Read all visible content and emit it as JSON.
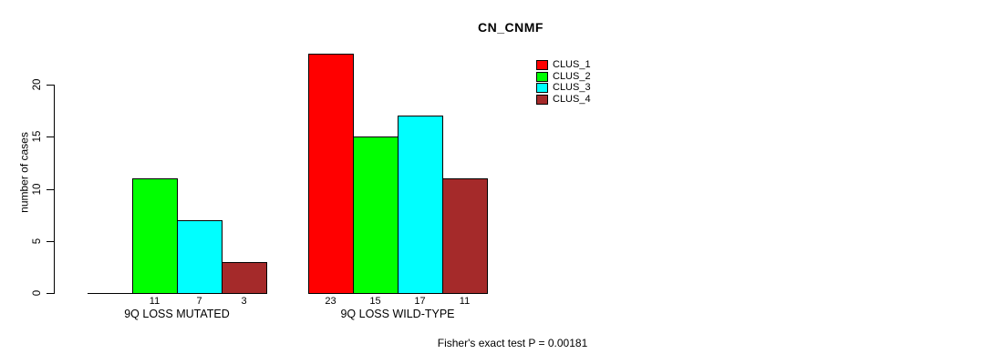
{
  "title": "CN_CNMF",
  "ylabel": "number of cases",
  "footer": "Fisher's exact test P = 0.00181",
  "colors": {
    "background": "#FFFFFF",
    "axis": "#000000",
    "text": "#000000",
    "clus_1": "#FF0000",
    "clus_2": "#00FF00",
    "clus_3": "#00FFFF",
    "clus_4": "#A52A2A"
  },
  "legend": {
    "items": [
      {
        "label": "CLUS_1",
        "color": "#FF0000"
      },
      {
        "label": "CLUS_2",
        "color": "#00FF00"
      },
      {
        "label": "CLUS_3",
        "color": "#00FFFF"
      },
      {
        "label": "CLUS_4",
        "color": "#A52A2A"
      }
    ]
  },
  "chart_data": {
    "type": "bar",
    "title": "CN_CNMF",
    "xlabel": "",
    "ylabel": "number of cases",
    "categories": [
      "9Q LOSS MUTATED",
      "9Q LOSS WILD-TYPE"
    ],
    "series": [
      {
        "name": "CLUS_1",
        "color": "#FF0000",
        "values": [
          0,
          23
        ]
      },
      {
        "name": "CLUS_2",
        "color": "#00FF00",
        "values": [
          11,
          15
        ]
      },
      {
        "name": "CLUS_3",
        "color": "#00FFFF",
        "values": [
          7,
          17
        ]
      },
      {
        "name": "CLUS_4",
        "color": "#A52A2A",
        "values": [
          3,
          11
        ]
      }
    ],
    "bar_value_labels": [
      [
        "",
        "11",
        "7",
        "3"
      ],
      [
        "23",
        "15",
        "17",
        "11"
      ]
    ],
    "yticks": [
      0,
      5,
      10,
      15,
      20
    ],
    "ylim": [
      0,
      23
    ],
    "grid": false,
    "legend_position": "top-right-inside",
    "annotation": "Fisher's exact test P = 0.00181"
  }
}
